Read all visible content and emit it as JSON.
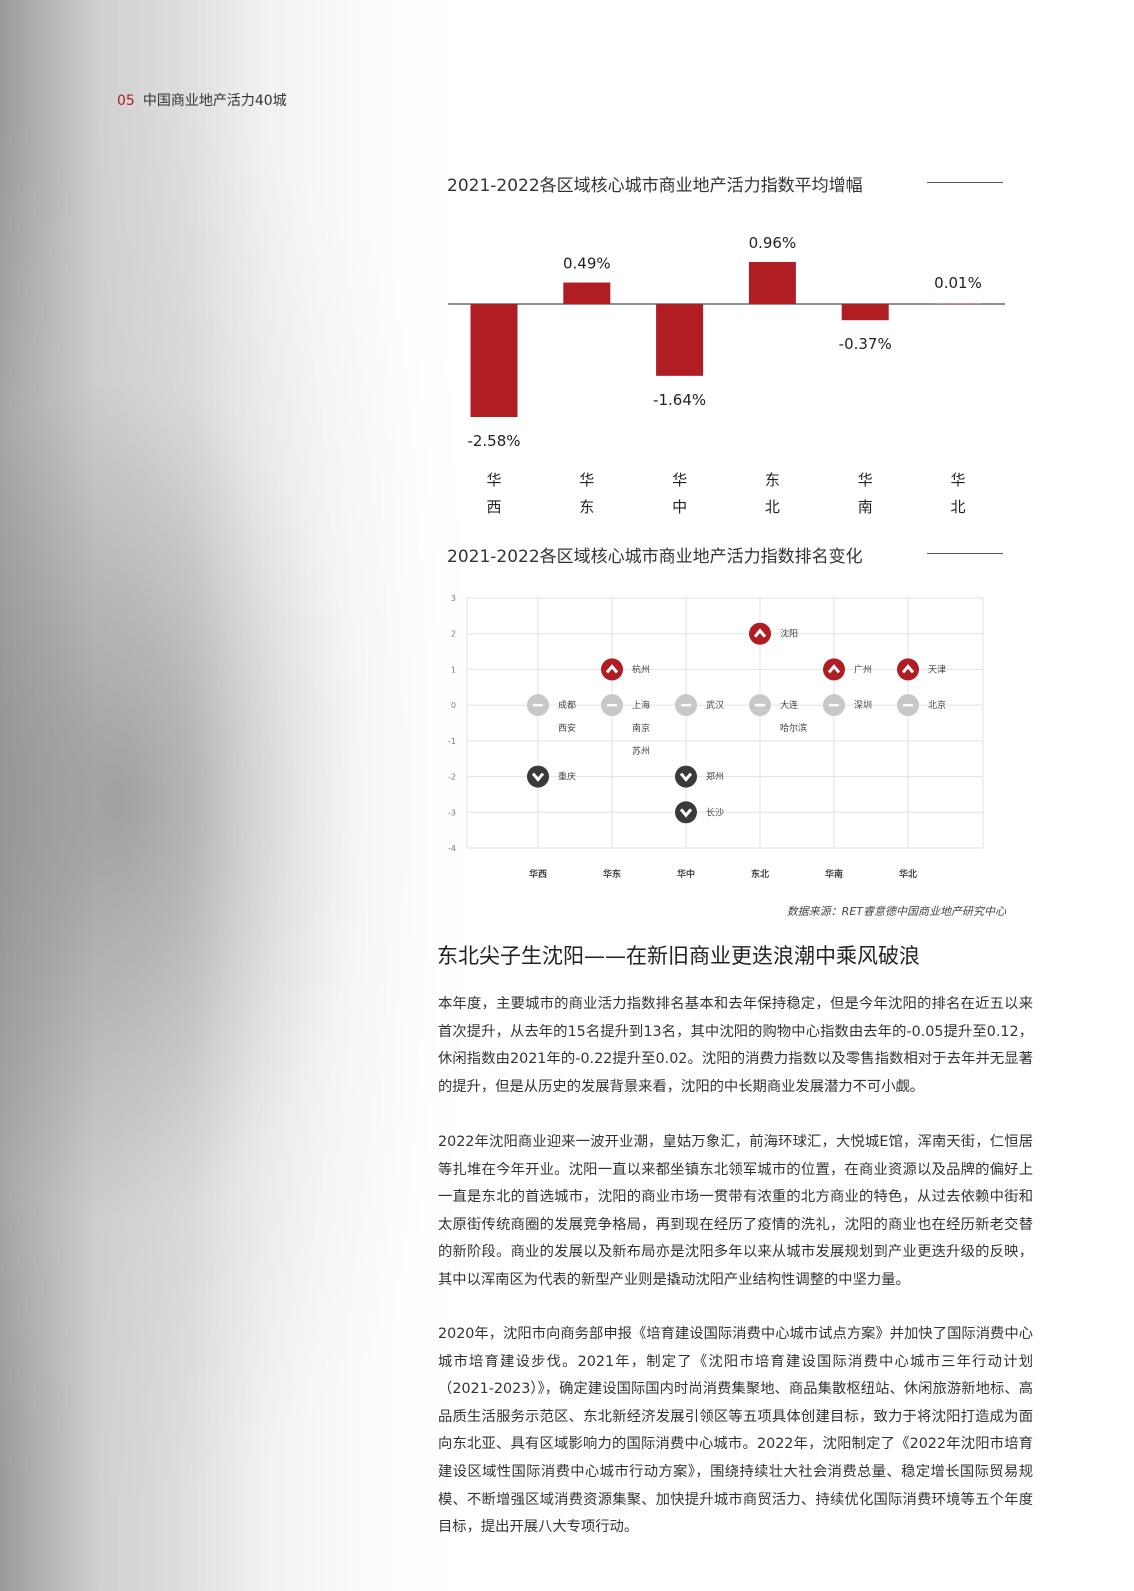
{
  "header": {
    "page_num": "05",
    "title": "中国商业地产活力40城"
  },
  "chart_data": [
    {
      "type": "bar",
      "title": "2021-2022各区域核心城市商业地产活力指数平均增幅",
      "categories": [
        "华西",
        "华东",
        "华中",
        "东北",
        "华南",
        "华北"
      ],
      "values": [
        -2.58,
        0.49,
        -1.64,
        0.96,
        -0.37,
        0.01
      ],
      "data_labels": [
        "-2.58%",
        "0.49%",
        "-1.64%",
        "0.96%",
        "-0.37%",
        "0.01%"
      ],
      "unit": "%",
      "bar_color": "#b01d23",
      "grid": false
    },
    {
      "type": "scatter",
      "title": "2021-2022各区域核心城市商业地产活力指数排名变化",
      "categories": [
        "华西",
        "华东",
        "华中",
        "东北",
        "华南",
        "华北"
      ],
      "yticks": [
        3,
        2,
        1,
        0,
        -1,
        -2,
        -3,
        -4
      ],
      "ylim": [
        -4,
        3
      ],
      "grid": true,
      "colors": {
        "up": "#b01d23",
        "flat": "#c8c8c8",
        "down": "#3a3a3a"
      },
      "points": [
        {
          "category": "华西",
          "y": 0,
          "labels": [
            "成都",
            "西安"
          ],
          "trend": "flat"
        },
        {
          "category": "华西",
          "y": -2,
          "labels": [
            "重庆"
          ],
          "trend": "down"
        },
        {
          "category": "华东",
          "y": 1,
          "labels": [
            "杭州"
          ],
          "trend": "up"
        },
        {
          "category": "华东",
          "y": 0,
          "labels": [
            "上海",
            "南京",
            "苏州"
          ],
          "trend": "flat"
        },
        {
          "category": "华中",
          "y": 0,
          "labels": [
            "武汉"
          ],
          "trend": "flat"
        },
        {
          "category": "华中",
          "y": -2,
          "labels": [
            "郑州"
          ],
          "trend": "down"
        },
        {
          "category": "华中",
          "y": -3,
          "labels": [
            "长沙"
          ],
          "trend": "down"
        },
        {
          "category": "东北",
          "y": 2,
          "labels": [
            "沈阳"
          ],
          "trend": "up"
        },
        {
          "category": "东北",
          "y": 0,
          "labels": [
            "大连",
            "哈尔滨"
          ],
          "trend": "flat"
        },
        {
          "category": "华南",
          "y": 1,
          "labels": [
            "广州"
          ],
          "trend": "up"
        },
        {
          "category": "华南",
          "y": 0,
          "labels": [
            "深圳"
          ],
          "trend": "flat"
        },
        {
          "category": "华北",
          "y": 1,
          "labels": [
            "天津"
          ],
          "trend": "up"
        },
        {
          "category": "华北",
          "y": 0,
          "labels": [
            "北京"
          ],
          "trend": "flat"
        }
      ]
    }
  ],
  "source": "数据来源：RET睿意德中国商业地产研究中心",
  "article": {
    "heading": "东北尖子生沈阳——在新旧商业更迭浪潮中乘风破浪",
    "paragraphs": [
      "本年度，主要城市的商业活力指数排名基本和去年保持稳定，但是今年沈阳的排名在近五以来首次提升，从去年的15名提升到13名，其中沈阳的购物中心指数由去年的-0.05提升至0.12，休闲指数由2021年的-0.22提升至0.02。沈阳的消费力指数以及零售指数相对于去年并无显著的提升，但是从历史的发展背景来看，沈阳的中长期商业发展潜力不可小觑。",
      "2022年沈阳商业迎来一波开业潮，皇姑万象汇，前海环球汇，大悦城E馆，浑南天街，仁恒居等扎堆在今年开业。沈阳一直以来都坐镇东北领军城市的位置，在商业资源以及品牌的偏好上一直是东北的首选城市，沈阳的商业市场一贯带有浓重的北方商业的特色，从过去依赖中街和太原街传统商圈的发展竞争格局，再到现在经历了疫情的洗礼，沈阳的商业也在经历新老交替的新阶段。商业的发展以及新布局亦是沈阳多年以来从城市发展规划到产业更迭升级的反映，其中以浑南区为代表的新型产业则是撬动沈阳产业结构性调整的中坚力量。",
      "2020年，沈阳市向商务部申报《培育建设国际消费中心城市试点方案》并加快了国际消费中心城市培育建设步伐。2021年，制定了《沈阳市培育建设国际消费中心城市三年行动计划（2021-2023）》，确定建设国际国内时尚消费集聚地、商品集散枢纽站、休闲旅游新地标、高品质生活服务示范区、东北新经济发展引领区等五项具体创建目标，致力于将沈阳打造成为面向东北亚、具有区域影响力的国际消费中心城市。2022年，沈阳制定了《2022年沈阳市培育建设区域性国际消费中心城市行动方案》，围绕持续壮大社会消费总量、稳定增长国际贸易规模、不断增强区域消费资源集聚、加快提升城市商贸活力、持续优化国际消费环境等五个年度目标，提出开展八大专项行动。"
    ]
  }
}
